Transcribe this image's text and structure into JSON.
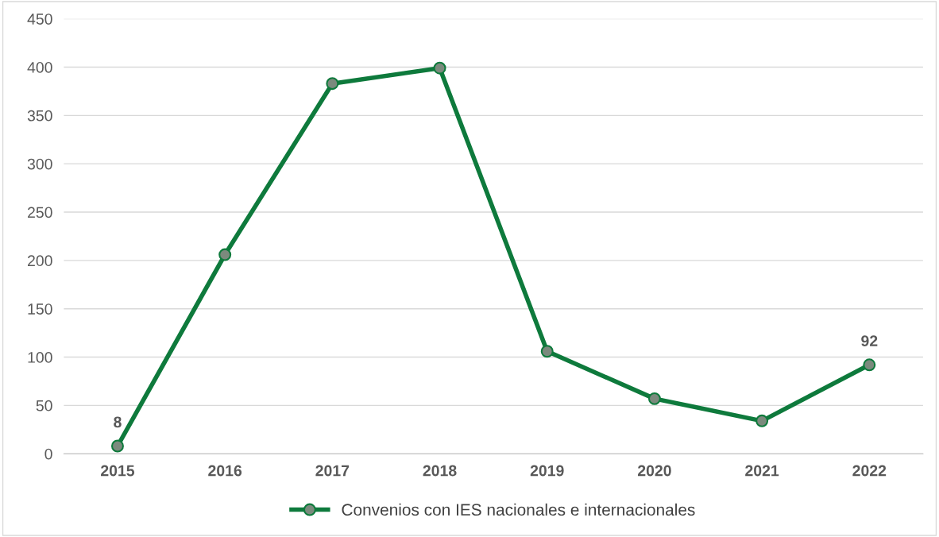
{
  "chart_data": {
    "type": "line",
    "categories": [
      "2015",
      "2016",
      "2017",
      "2018",
      "2019",
      "2020",
      "2021",
      "2022"
    ],
    "series": [
      {
        "name": "Convenios con IES nacionales e internacionales",
        "color": "#0e7a3c",
        "values": [
          8,
          206,
          383,
          399,
          106,
          57,
          34,
          92
        ],
        "value_labels": [
          "8",
          null,
          null,
          null,
          null,
          null,
          null,
          "92"
        ]
      }
    ],
    "ylim": [
      0,
      450
    ],
    "yticks": [
      0,
      50,
      100,
      150,
      200,
      250,
      300,
      350,
      400,
      450
    ],
    "grid": "y",
    "legend": "bottom",
    "marker": "circle",
    "line_style": "solid"
  }
}
